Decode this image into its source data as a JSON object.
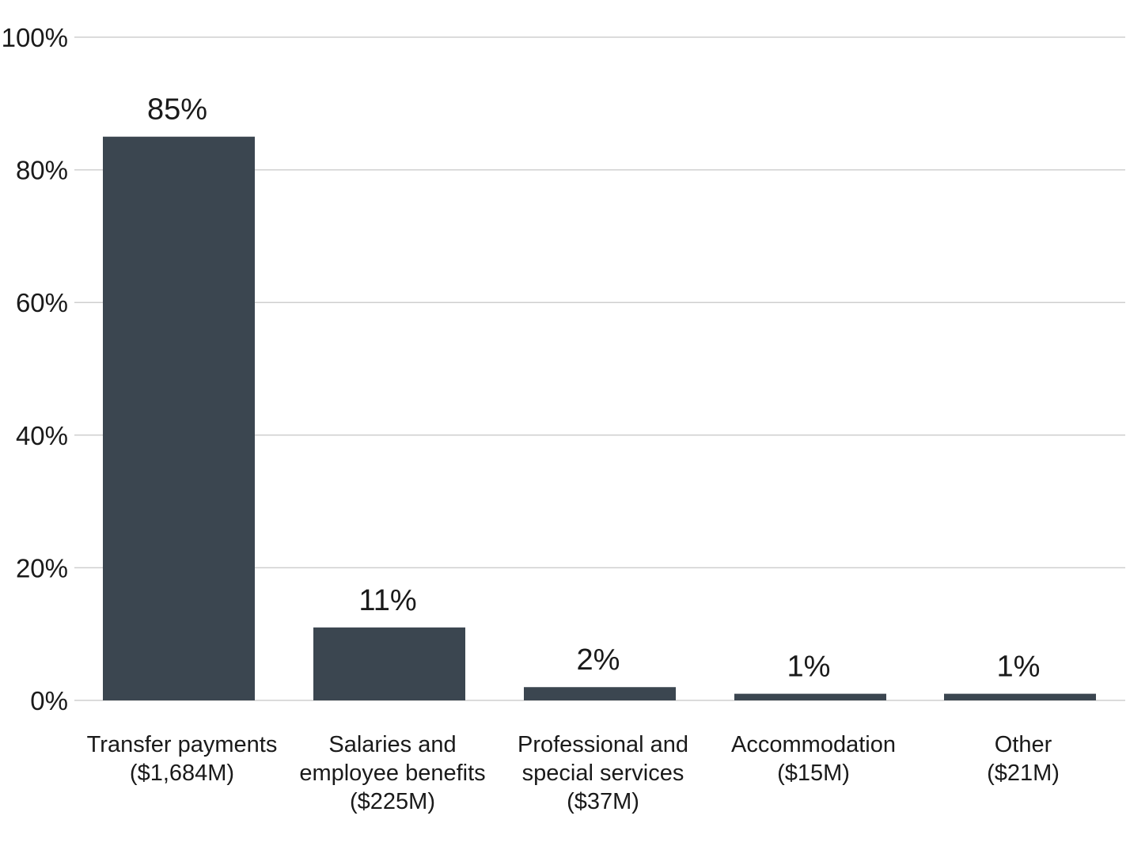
{
  "chart_data": {
    "type": "bar",
    "title": "",
    "xlabel": "",
    "ylabel": "",
    "ylim": [
      0,
      100
    ],
    "yticks": [
      {
        "value": 0,
        "label": "0%"
      },
      {
        "value": 20,
        "label": "20%"
      },
      {
        "value": 40,
        "label": "40%"
      },
      {
        "value": 60,
        "label": "60%"
      },
      {
        "value": 80,
        "label": "80%"
      },
      {
        "value": 100,
        "label": "100%"
      }
    ],
    "grid": true,
    "bar_color": "#3b4650",
    "categories": [
      {
        "lines": [
          "Transfer payments",
          "($1,684M)"
        ]
      },
      {
        "lines": [
          "Salaries and",
          "employee benefits",
          "($225M)"
        ]
      },
      {
        "lines": [
          "Professional and",
          "special services",
          "($37M)"
        ]
      },
      {
        "lines": [
          "Accommodation",
          "($15M)"
        ]
      },
      {
        "lines": [
          "Other",
          "($21M)"
        ]
      }
    ],
    "values": [
      85,
      11,
      2,
      1,
      1
    ],
    "data_labels": [
      "85%",
      "11%",
      "2%",
      "1%",
      "1%"
    ]
  }
}
